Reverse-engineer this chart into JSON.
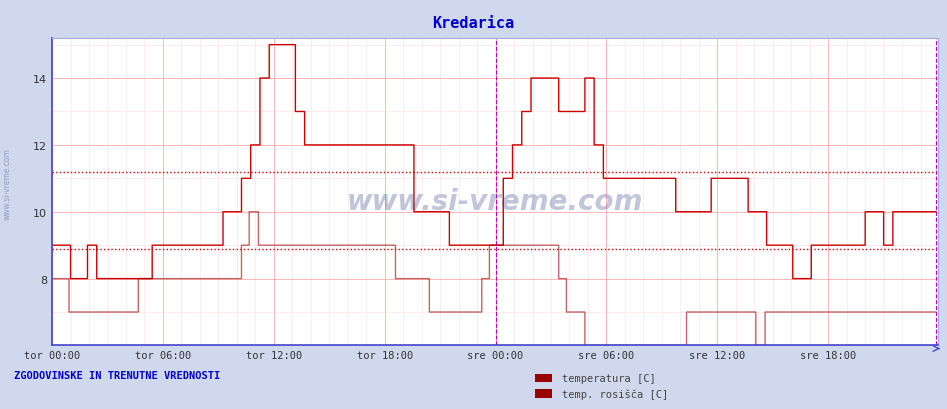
{
  "title": "Kredarica",
  "title_color": "#0000cc",
  "bg_color": "#d0d8ee",
  "plot_bg_color": "#ffffff",
  "xlabel_ticks": [
    "tor 00:00",
    "tor 06:00",
    "tor 12:00",
    "tor 18:00",
    "sre 00:00",
    "sre 06:00",
    "sre 12:00",
    "sre 18:00"
  ],
  "ylabel_ticks": [
    8,
    10,
    12,
    14
  ],
  "ylim": [
    6.0,
    15.2
  ],
  "xlim": [
    0,
    575
  ],
  "tick_positions_x": [
    0,
    72,
    144,
    216,
    288,
    360,
    432,
    504
  ],
  "grid_major_color": "#ffaaaa",
  "grid_minor_color": "#ffdddd",
  "hline1_y": 11.2,
  "hline2_y": 8.9,
  "vline1_x": 288,
  "vline2_x": 574,
  "line1_color": "#cc0000",
  "line2_color": "#990000",
  "bottom_left_text": "ZGODOVINSKE IN TRENUTNE VREDNOSTI",
  "bottom_left_color": "#0000cc",
  "legend_labels": [
    "temperatura [C]",
    "temp. rosišča [C]"
  ],
  "legend_color": "#990000",
  "watermark": "www.si-vreme.com",
  "watermark_color": "#334488",
  "temp_data": [
    9,
    9,
    9,
    9,
    9,
    9,
    9,
    9,
    9,
    9,
    9,
    9,
    8,
    8,
    8,
    8,
    8,
    8,
    8,
    8,
    8,
    8,
    8,
    8,
    9,
    9,
    9,
    9,
    9,
    9,
    8,
    8,
    8,
    8,
    8,
    8,
    8,
    8,
    8,
    8,
    8,
    8,
    8,
    8,
    8,
    8,
    8,
    8,
    8,
    8,
    8,
    8,
    8,
    8,
    8,
    8,
    8,
    8,
    8,
    8,
    8,
    8,
    8,
    8,
    8,
    8,
    9,
    9,
    9,
    9,
    9,
    9,
    9,
    9,
    9,
    9,
    9,
    9,
    9,
    9,
    9,
    9,
    9,
    9,
    9,
    9,
    9,
    9,
    9,
    9,
    9,
    9,
    9,
    9,
    9,
    9,
    9,
    9,
    9,
    9,
    9,
    9,
    9,
    9,
    9,
    9,
    9,
    9,
    9,
    9,
    9,
    9,
    9,
    9,
    10,
    10,
    10,
    10,
    10,
    10,
    10,
    10,
    10,
    10,
    10,
    10,
    11,
    11,
    11,
    11,
    11,
    11,
    12,
    12,
    12,
    12,
    12,
    12,
    14,
    14,
    14,
    14,
    14,
    14,
    15,
    15,
    15,
    15,
    15,
    15,
    15,
    15,
    15,
    15,
    15,
    15,
    15,
    15,
    15,
    15,
    15,
    15,
    13,
    13,
    13,
    13,
    13,
    13,
    12,
    12,
    12,
    12,
    12,
    12,
    12,
    12,
    12,
    12,
    12,
    12,
    12,
    12,
    12,
    12,
    12,
    12,
    12,
    12,
    12,
    12,
    12,
    12,
    12,
    12,
    12,
    12,
    12,
    12,
    12,
    12,
    12,
    12,
    12,
    12,
    12,
    12,
    12,
    12,
    12,
    12,
    12,
    12,
    12,
    12,
    12,
    12,
    12,
    12,
    12,
    12,
    12,
    12,
    12,
    12,
    12,
    12,
    12,
    12,
    12,
    12,
    12,
    12,
    12,
    12,
    12,
    12,
    12,
    12,
    12,
    12,
    10,
    10,
    10,
    10,
    10,
    10,
    10,
    10,
    10,
    10,
    10,
    10,
    10,
    10,
    10,
    10,
    10,
    10,
    10,
    10,
    10,
    10,
    10,
    10,
    9,
    9,
    9,
    9,
    9,
    9,
    9,
    9,
    9,
    9,
    9,
    9,
    9,
    9,
    9,
    9,
    9,
    9,
    9,
    9,
    9,
    9,
    9,
    9,
    9,
    9,
    9,
    9,
    9,
    9,
    9,
    9,
    9,
    9,
    9,
    9,
    11,
    11,
    11,
    11,
    11,
    11,
    12,
    12,
    12,
    12,
    12,
    12,
    13,
    13,
    13,
    13,
    13,
    13,
    14,
    14,
    14,
    14,
    14,
    14,
    14,
    14,
    14,
    14,
    14,
    14,
    14,
    14,
    14,
    14,
    14,
    14,
    13,
    13,
    13,
    13,
    13,
    13,
    13,
    13,
    13,
    13,
    13,
    13,
    13,
    13,
    13,
    13,
    13,
    13,
    14,
    14,
    14,
    14,
    14,
    14,
    12,
    12,
    12,
    12,
    12,
    12,
    11,
    11,
    11,
    11,
    11,
    11,
    11,
    11,
    11,
    11,
    11,
    11,
    11,
    11,
    11,
    11,
    11,
    11,
    11,
    11,
    11,
    11,
    11,
    11,
    11,
    11,
    11,
    11,
    11,
    11,
    11,
    11,
    11,
    11,
    11,
    11,
    11,
    11,
    11,
    11,
    11,
    11,
    11,
    11,
    11,
    11,
    11,
    11,
    10,
    10,
    10,
    10,
    10,
    10,
    10,
    10,
    10,
    10,
    10,
    10,
    10,
    10,
    10,
    10,
    10,
    10,
    10,
    10,
    10,
    10,
    10,
    10,
    11,
    11,
    11,
    11,
    11,
    11,
    11,
    11,
    11,
    11,
    11,
    11,
    11,
    11,
    11,
    11,
    11,
    11,
    11,
    11,
    11,
    11,
    11,
    11,
    10,
    10,
    10,
    10,
    10,
    10,
    10,
    10,
    10,
    10,
    10,
    10,
    9,
    9,
    9,
    9,
    9,
    9,
    9,
    9,
    9,
    9,
    9,
    9,
    9,
    9,
    9,
    9,
    9,
    9,
    8,
    8,
    8,
    8,
    8,
    8,
    8,
    8,
    8,
    8,
    8,
    8,
    9,
    9,
    9,
    9,
    9,
    9,
    9,
    9,
    9,
    9,
    9,
    9,
    9,
    9,
    9,
    9,
    9,
    9,
    9,
    9,
    9,
    9,
    9,
    9,
    9,
    9,
    9,
    9,
    9,
    9,
    9,
    9,
    9,
    9,
    9,
    9,
    10,
    10,
    10,
    10,
    10,
    10,
    10,
    10,
    10,
    10,
    10,
    10,
    9,
    9,
    9,
    9,
    9,
    9,
    10,
    10,
    10,
    10,
    10,
    10,
    10,
    10,
    10,
    10,
    10,
    10,
    10,
    10,
    10,
    10,
    10,
    10,
    10,
    10,
    10,
    10,
    10,
    10,
    10,
    10,
    10,
    10,
    10,
    10
  ],
  "dew_data": [
    8,
    8,
    8,
    8,
    8,
    8,
    8,
    8,
    8,
    8,
    8,
    8,
    7,
    7,
    7,
    7,
    7,
    7,
    7,
    7,
    7,
    7,
    7,
    7,
    7,
    7,
    7,
    7,
    7,
    7,
    7,
    7,
    7,
    7,
    7,
    7,
    7,
    7,
    7,
    7,
    7,
    7,
    7,
    7,
    7,
    7,
    7,
    7,
    7,
    7,
    7,
    7,
    7,
    7,
    7,
    7,
    7,
    7,
    7,
    7,
    8,
    8,
    8,
    8,
    8,
    8,
    8,
    8,
    8,
    8,
    8,
    8,
    8,
    8,
    8,
    8,
    8,
    8,
    8,
    8,
    8,
    8,
    8,
    8,
    8,
    8,
    8,
    8,
    8,
    8,
    8,
    8,
    8,
    8,
    8,
    8,
    8,
    8,
    8,
    8,
    8,
    8,
    8,
    8,
    8,
    8,
    8,
    8,
    8,
    8,
    8,
    8,
    8,
    8,
    8,
    8,
    8,
    8,
    8,
    8,
    8,
    8,
    8,
    8,
    8,
    8,
    8,
    8,
    8,
    8,
    8,
    8,
    9,
    9,
    9,
    9,
    9,
    9,
    10,
    10,
    10,
    10,
    10,
    10,
    9,
    9,
    9,
    9,
    9,
    9,
    9,
    9,
    9,
    9,
    9,
    9,
    9,
    9,
    9,
    9,
    9,
    9,
    9,
    9,
    9,
    9,
    9,
    9,
    9,
    9,
    9,
    9,
    9,
    9,
    9,
    9,
    9,
    9,
    9,
    9,
    9,
    9,
    9,
    9,
    9,
    9,
    9,
    9,
    9,
    9,
    9,
    9,
    9,
    9,
    9,
    9,
    9,
    9,
    9,
    9,
    9,
    9,
    9,
    9,
    9,
    9,
    9,
    9,
    9,
    9,
    9,
    9,
    9,
    9,
    9,
    9,
    9,
    9,
    9,
    9,
    9,
    9,
    9,
    9,
    9,
    9,
    9,
    9,
    9,
    9,
    9,
    9,
    9,
    9,
    9,
    9,
    9,
    9,
    9,
    9,
    8,
    8,
    8,
    8,
    8,
    8,
    8,
    8,
    8,
    8,
    8,
    8,
    8,
    8,
    8,
    8,
    8,
    8,
    8,
    8,
    8,
    8,
    8,
    8,
    7,
    7,
    7,
    7,
    7,
    7,
    7,
    7,
    7,
    7,
    7,
    7,
    7,
    7,
    7,
    7,
    7,
    7,
    7,
    7,
    7,
    7,
    7,
    7,
    7,
    7,
    7,
    7,
    7,
    7,
    7,
    7,
    7,
    7,
    7,
    7,
    8,
    8,
    8,
    8,
    8,
    8,
    9,
    9,
    9,
    9,
    9,
    9,
    9,
    9,
    9,
    9,
    9,
    9,
    9,
    9,
    9,
    9,
    9,
    9,
    9,
    9,
    9,
    9,
    9,
    9,
    9,
    9,
    9,
    9,
    9,
    9,
    9,
    9,
    9,
    9,
    9,
    9,
    9,
    9,
    9,
    9,
    9,
    9,
    9,
    9,
    9,
    9,
    9,
    9,
    8,
    8,
    8,
    8,
    8,
    8,
    7,
    7,
    7,
    7,
    7,
    7,
    7,
    7,
    7,
    7,
    7,
    7,
    6,
    6,
    6,
    6,
    6,
    6,
    6,
    6,
    6,
    6,
    6,
    6,
    6,
    6,
    6,
    6,
    6,
    6,
    6,
    6,
    6,
    6,
    6,
    6,
    6,
    6,
    6,
    6,
    6,
    6,
    6,
    6,
    6,
    6,
    6,
    6,
    6,
    6,
    6,
    6,
    6,
    6,
    6,
    6,
    6,
    6,
    6,
    6,
    6,
    6,
    6,
    6,
    6,
    6,
    6,
    6,
    6,
    6,
    6,
    6,
    6,
    6,
    6,
    6,
    6,
    6,
    6,
    6,
    6,
    6,
    6,
    6,
    7,
    7,
    7,
    7,
    7,
    7,
    7,
    7,
    7,
    7,
    7,
    7,
    7,
    7,
    7,
    7,
    7,
    7,
    7,
    7,
    7,
    7,
    7,
    7,
    7,
    7,
    7,
    7,
    7,
    7,
    7,
    7,
    7,
    7,
    7,
    7,
    7,
    7,
    7,
    7,
    7,
    7,
    7,
    7,
    7,
    7,
    7,
    7,
    6,
    6,
    6,
    6,
    6,
    6,
    7,
    7,
    7,
    7,
    7,
    7,
    7,
    7,
    7,
    7,
    7,
    7,
    7,
    7,
    7,
    7,
    7,
    7,
    7,
    7,
    7,
    7,
    7,
    7,
    7,
    7,
    7,
    7,
    7,
    7,
    7,
    7,
    7,
    7,
    7,
    7,
    7,
    7,
    7,
    7,
    7,
    7,
    7,
    7,
    7,
    7,
    7,
    7,
    7,
    7,
    7,
    7,
    7,
    7,
    7,
    7,
    7,
    7,
    7,
    7,
    7,
    7,
    7,
    7,
    7,
    7,
    7,
    7,
    7,
    7,
    7,
    7,
    7,
    7,
    7,
    7,
    7,
    7,
    7,
    7,
    7,
    7,
    7,
    7,
    7,
    7,
    7,
    7,
    7,
    7,
    7,
    7,
    7,
    7,
    7,
    7,
    7,
    7,
    7,
    7,
    7,
    7,
    7,
    7,
    7,
    7,
    7,
    7,
    7,
    7,
    7,
    7,
    7,
    7,
    7,
    7,
    7,
    7,
    7,
    7,
    7
  ]
}
